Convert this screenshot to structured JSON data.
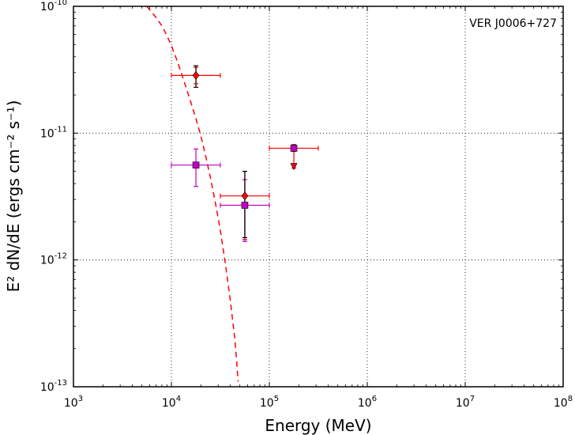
{
  "chart_data": {
    "type": "scatter",
    "title": "",
    "annotation": "VER J0006+727",
    "xlabel": "Energy (MeV)",
    "ylabel": "E² dN/dE (ergs cm⁻² s⁻¹)",
    "xscale": "log",
    "yscale": "log",
    "xlim": [
      1000,
      100000000
    ],
    "ylim": [
      1e-13,
      1e-10
    ],
    "grid": true,
    "x_ticks": [
      {
        "base": "10",
        "exp": "3"
      },
      {
        "base": "10",
        "exp": "4"
      },
      {
        "base": "10",
        "exp": "5"
      },
      {
        "base": "10",
        "exp": "6"
      },
      {
        "base": "10",
        "exp": "7"
      },
      {
        "base": "10",
        "exp": "8"
      }
    ],
    "y_ticks": [
      {
        "base": "10",
        "exp": "-13"
      },
      {
        "base": "10",
        "exp": "-12"
      },
      {
        "base": "10",
        "exp": "-11"
      },
      {
        "base": "10",
        "exp": "-10"
      }
    ],
    "series": [
      {
        "marker": "diamond",
        "color": "#ff0000",
        "errorbar_color": "#ff0000",
        "points": [
          {
            "x": 17800,
            "y": 2.85e-11,
            "xerr": [
              10000,
              31600
            ],
            "yerr": [
              2.45e-11,
              3.3e-11
            ],
            "upper_limit": false
          },
          {
            "x": 56200,
            "y": 3.2e-12,
            "xerr": [
              31600,
              100000
            ],
            "yerr": [
              1.45e-12,
              5e-12
            ],
            "upper_limit": false
          },
          {
            "x": 178000,
            "y": 7.6e-12,
            "xerr": [
              100000,
              316000
            ],
            "yerr": [
              5.3e-12,
              7.6e-12
            ],
            "upper_limit": true
          }
        ]
      },
      {
        "marker": "square",
        "color": "#bf00bf",
        "errorbar_color": "#bf00bf",
        "points": [
          {
            "x": 17800,
            "y": 5.6e-12,
            "xerr": [
              10000,
              31600
            ],
            "yerr": [
              3.8e-12,
              7.5e-12
            ],
            "upper_limit": false
          },
          {
            "x": 56200,
            "y": 2.7e-12,
            "xerr": [
              31600,
              100000
            ],
            "yerr": [
              1.4e-12,
              4.3e-12
            ],
            "upper_limit": false
          },
          {
            "x": 178000,
            "y": 7.6e-12,
            "xerr": [],
            "yerr": [],
            "upper_limit": false
          }
        ]
      },
      {
        "marker": "errorbar-only",
        "color": "#000000",
        "errorbar_color": "#000000",
        "points": [
          {
            "x": 17800,
            "y": 2.85e-11,
            "yerr": [
              2.3e-11,
              3.4e-11
            ]
          },
          {
            "x": 56200,
            "y": 3.2e-12,
            "yerr": [
              1.5e-12,
              5e-12
            ]
          },
          {
            "x": 178000,
            "y": 7.6e-12,
            "yerr": [
              7.2e-12,
              8.1e-12
            ]
          }
        ]
      }
    ],
    "curve": {
      "style": "dashed",
      "color": "#ff0000",
      "points": [
        [
          5600,
          1e-10
        ],
        [
          6300,
          9e-11
        ],
        [
          7100,
          8e-11
        ],
        [
          7900,
          7.1e-11
        ],
        [
          8900,
          6e-11
        ],
        [
          10000,
          4.9e-11
        ],
        [
          11200,
          3.9e-11
        ],
        [
          12600,
          3e-11
        ],
        [
          14100,
          2.3e-11
        ],
        [
          15800,
          1.75e-11
        ],
        [
          17800,
          1.3e-11
        ],
        [
          20000,
          9.5e-12
        ],
        [
          22400,
          6.6e-12
        ],
        [
          25100,
          4.4e-12
        ],
        [
          28200,
          2.8e-12
        ],
        [
          31600,
          1.7e-12
        ],
        [
          35500,
          9.5e-13
        ],
        [
          39800,
          4.9e-13
        ],
        [
          44700,
          2.3e-13
        ],
        [
          48000,
          1.1e-13
        ]
      ]
    }
  }
}
